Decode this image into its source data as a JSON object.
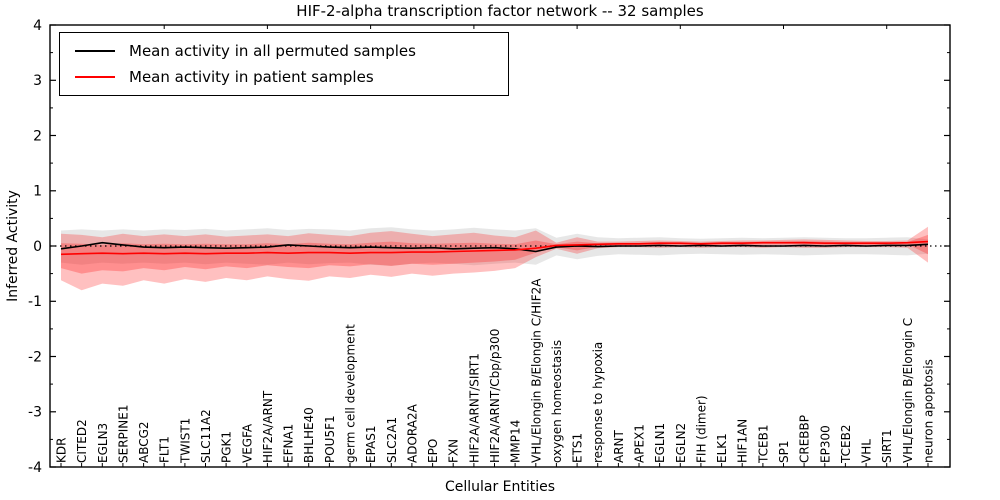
{
  "title": "HIF-2-alpha transcription factor network -- 32 samples",
  "axes": {
    "xlabel": "Cellular Entities",
    "ylabel": "Inferred Activity",
    "ylim": [
      -4,
      4
    ],
    "yticks": [
      4,
      3,
      2,
      1,
      0,
      -1,
      -2,
      -3,
      -4
    ],
    "yticklabels": [
      "4",
      "3",
      "2",
      "1",
      "0",
      "-1",
      "-2",
      "-3",
      "-4"
    ],
    "grid": false
  },
  "legend": {
    "position": "upper left",
    "entries": [
      {
        "label": "Mean activity in all permuted samples",
        "color": "#000000"
      },
      {
        "label": "Mean activity in patient samples",
        "color": "#ff0000"
      }
    ]
  },
  "colors": {
    "permuted_line": "#000000",
    "patient_line": "#ff0000",
    "permuted_band": "rgba(120,120,120,0.18)",
    "patient_band": "rgba(255,30,30,0.28)",
    "patient_band_inner": "rgba(255,30,30,0.30)",
    "zero_line": "#000000",
    "frame": "#000000"
  },
  "chart_data": {
    "type": "line",
    "title": "HIF-2-alpha transcription factor network -- 32 samples",
    "xlabel": "Cellular Entities",
    "ylabel": "Inferred Activity",
    "ylim": [
      -4,
      4
    ],
    "legend_position": "upper left",
    "zero_reference_line": 0,
    "categories": [
      "KDR",
      "CITED2",
      "EGLN3",
      "SERPINE1",
      "ABCG2",
      "FLT1",
      "TWIST1",
      "SLC11A2",
      "PGK1",
      "VEGFA",
      "HIF2A/ARNT",
      "EFNA1",
      "BHLHE40",
      "POU5F1",
      "germ cell development",
      "EPAS1",
      "SLC2A1",
      "ADORA2A",
      "EPO",
      "FXN",
      "HIF2A/ARNT/SIRT1",
      "HIF2A/ARNT/Cbp/p300",
      "MMP14",
      "VHL/Elongin B/Elongin C/HIF2A",
      "oxygen homeostasis",
      "ETS1",
      "response to hypoxia",
      "ARNT",
      "APEX1",
      "EGLN1",
      "EGLN2",
      "FIH (dimer)",
      "ELK1",
      "HIF1AN",
      "TCEB1",
      "SP1",
      "CREBBP",
      "EP300",
      "TCEB2",
      "VHL",
      "SIRT1",
      "VHL/Elongin B/Elongin C",
      "neuron apoptosis"
    ],
    "series": [
      {
        "name": "Mean activity in all permuted samples",
        "color": "#000000",
        "values": [
          -0.05,
          0.0,
          0.06,
          0.02,
          -0.02,
          -0.03,
          -0.02,
          -0.03,
          -0.04,
          -0.03,
          -0.02,
          0.02,
          0.0,
          -0.02,
          -0.03,
          -0.02,
          -0.03,
          -0.04,
          -0.03,
          -0.05,
          -0.04,
          -0.03,
          -0.05,
          -0.1,
          -0.02,
          0.0,
          -0.01,
          0.0,
          0.0,
          0.01,
          0.0,
          0.01,
          0.0,
          0.01,
          0.0,
          0.0,
          0.01,
          0.0,
          0.01,
          0.0,
          0.01,
          0.01,
          0.03
        ]
      },
      {
        "name": "Mean activity in patient samples",
        "color": "#ff0000",
        "values": [
          -0.15,
          -0.14,
          -0.13,
          -0.14,
          -0.13,
          -0.14,
          -0.13,
          -0.14,
          -0.13,
          -0.13,
          -0.12,
          -0.13,
          -0.12,
          -0.12,
          -0.13,
          -0.12,
          -0.12,
          -0.11,
          -0.11,
          -0.1,
          -0.09,
          -0.08,
          -0.07,
          -0.04,
          0.01,
          0.02,
          0.03,
          0.04,
          0.04,
          0.05,
          0.05,
          0.04,
          0.05,
          0.05,
          0.06,
          0.06,
          0.06,
          0.05,
          0.05,
          0.05,
          0.05,
          0.06,
          0.08
        ]
      }
    ],
    "bands": [
      {
        "name": "permuted-sample-range",
        "color": "rgba(120,120,120,0.18)",
        "top": [
          0.28,
          0.3,
          0.28,
          0.3,
          0.28,
          0.3,
          0.29,
          0.31,
          0.28,
          0.3,
          0.32,
          0.29,
          0.31,
          0.3,
          0.28,
          0.32,
          0.34,
          0.3,
          0.28,
          0.3,
          0.33,
          0.3,
          0.28,
          0.32,
          0.15,
          0.22,
          0.16,
          0.14,
          0.15,
          0.16,
          0.14,
          0.13,
          0.14,
          0.15,
          0.14,
          0.15,
          0.16,
          0.15,
          0.14,
          0.14,
          0.15,
          0.16,
          0.12
        ],
        "bottom": [
          -0.3,
          -0.34,
          -0.3,
          -0.32,
          -0.3,
          -0.32,
          -0.3,
          -0.33,
          -0.3,
          -0.32,
          -0.34,
          -0.3,
          -0.33,
          -0.31,
          -0.3,
          -0.34,
          -0.36,
          -0.32,
          -0.3,
          -0.32,
          -0.35,
          -0.32,
          -0.3,
          -0.34,
          -0.17,
          -0.24,
          -0.18,
          -0.15,
          -0.16,
          -0.17,
          -0.15,
          -0.14,
          -0.15,
          -0.16,
          -0.15,
          -0.16,
          -0.17,
          -0.16,
          -0.15,
          -0.15,
          -0.16,
          -0.17,
          -0.14
        ]
      },
      {
        "name": "patient-sample-range-outer",
        "color": "rgba(255,30,30,0.28)",
        "top": [
          0.22,
          0.2,
          0.16,
          0.22,
          0.18,
          0.21,
          0.18,
          0.21,
          0.17,
          0.19,
          0.21,
          0.18,
          0.23,
          0.2,
          0.18,
          0.24,
          0.27,
          0.22,
          0.18,
          0.21,
          0.24,
          0.19,
          0.16,
          0.28,
          0.06,
          0.16,
          0.08,
          0.08,
          0.09,
          0.1,
          0.09,
          0.08,
          0.09,
          0.1,
          0.1,
          0.11,
          0.12,
          0.11,
          0.1,
          0.09,
          0.09,
          0.1,
          0.35
        ],
        "bottom": [
          -0.62,
          -0.8,
          -0.68,
          -0.72,
          -0.62,
          -0.68,
          -0.6,
          -0.65,
          -0.58,
          -0.62,
          -0.55,
          -0.6,
          -0.63,
          -0.55,
          -0.58,
          -0.52,
          -0.56,
          -0.5,
          -0.54,
          -0.5,
          -0.48,
          -0.45,
          -0.4,
          -0.2,
          -0.05,
          -0.14,
          -0.04,
          -0.02,
          -0.02,
          -0.03,
          -0.02,
          -0.03,
          -0.02,
          -0.02,
          -0.03,
          -0.02,
          -0.03,
          -0.03,
          -0.02,
          -0.02,
          -0.02,
          -0.03,
          -0.3
        ]
      },
      {
        "name": "patient-sample-range-inner",
        "color": "rgba(255,30,30,0.30)",
        "top": [
          0.05,
          0.04,
          0.02,
          0.05,
          0.03,
          0.04,
          0.03,
          0.04,
          0.03,
          0.03,
          0.05,
          0.03,
          0.06,
          0.04,
          0.03,
          0.06,
          0.08,
          0.05,
          0.04,
          0.05,
          0.06,
          0.04,
          0.03,
          0.1,
          0.03,
          0.08,
          0.05,
          0.06,
          0.06,
          0.07,
          0.06,
          0.06,
          0.07,
          0.07,
          0.08,
          0.08,
          0.09,
          0.08,
          0.07,
          0.07,
          0.07,
          0.07,
          0.2
        ],
        "bottom": [
          -0.4,
          -0.5,
          -0.44,
          -0.46,
          -0.4,
          -0.44,
          -0.38,
          -0.42,
          -0.37,
          -0.4,
          -0.35,
          -0.38,
          -0.4,
          -0.35,
          -0.37,
          -0.33,
          -0.36,
          -0.32,
          -0.34,
          -0.32,
          -0.3,
          -0.28,
          -0.25,
          -0.12,
          -0.02,
          -0.08,
          -0.01,
          0.01,
          0.01,
          0.02,
          0.02,
          0.01,
          0.02,
          0.02,
          0.03,
          0.03,
          0.03,
          0.02,
          0.02,
          0.02,
          0.02,
          0.03,
          -0.15
        ]
      }
    ]
  }
}
